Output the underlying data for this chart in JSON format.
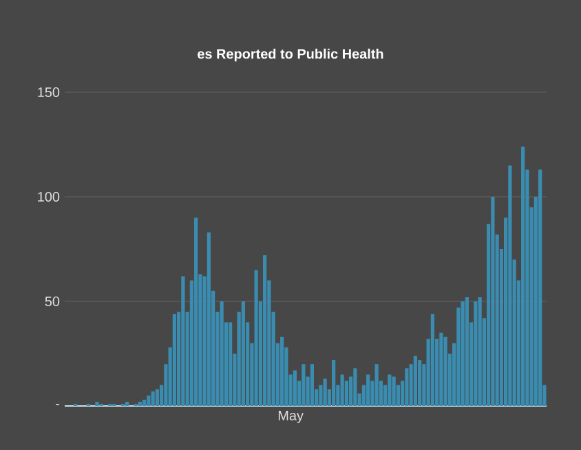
{
  "chart_data": {
    "type": "bar",
    "title": "es Reported to Public Health",
    "categories": [
      null,
      null,
      null,
      null,
      null,
      null,
      null,
      null,
      null,
      null,
      null,
      null,
      null,
      null,
      null,
      null,
      null,
      null,
      null,
      null,
      null,
      null,
      null,
      null,
      null,
      null,
      null,
      null,
      null,
      null,
      null,
      null,
      null,
      null,
      null,
      null,
      null,
      null,
      null,
      null,
      null,
      null,
      null,
      null,
      null,
      null,
      null,
      null,
      null,
      null,
      null,
      null,
      "May",
      null,
      null,
      null,
      null,
      null,
      null,
      null,
      null,
      null,
      null,
      null,
      null,
      null,
      null,
      null,
      null,
      null,
      null,
      null,
      null,
      null,
      null,
      null,
      null,
      null,
      null,
      null,
      null,
      null,
      null,
      null,
      null,
      null,
      null,
      null,
      null,
      null,
      null,
      null,
      null,
      null,
      null,
      null,
      null,
      null,
      null,
      null,
      null,
      null,
      null,
      null,
      null,
      null,
      null,
      null,
      null,
      null,
      null,
      null
    ],
    "values": [
      0,
      0,
      1,
      0,
      0,
      1,
      0,
      2,
      1,
      0,
      1,
      1,
      0,
      1,
      2,
      0,
      1,
      2,
      3,
      5,
      7,
      8,
      10,
      20,
      28,
      44,
      45,
      62,
      45,
      60,
      90,
      63,
      62,
      83,
      55,
      45,
      50,
      40,
      40,
      25,
      45,
      50,
      40,
      30,
      65,
      50,
      72,
      60,
      45,
      30,
      33,
      28,
      15,
      17,
      12,
      20,
      14,
      20,
      8,
      10,
      13,
      8,
      22,
      10,
      15,
      12,
      14,
      18,
      6,
      10,
      15,
      12,
      20,
      12,
      10,
      15,
      14,
      10,
      12,
      18,
      20,
      24,
      22,
      20,
      32,
      44,
      32,
      35,
      33,
      25,
      30,
      47,
      50,
      52,
      40,
      50,
      52,
      42,
      87,
      100,
      82,
      75,
      90,
      115,
      70,
      60,
      124,
      113,
      95,
      100,
      113,
      10
    ],
    "color": "#3a8db0",
    "ylim": [
      0,
      150
    ],
    "yticks": [
      {
        "value": 0,
        "label": "-"
      },
      50,
      100,
      150
    ],
    "grid": "y"
  }
}
